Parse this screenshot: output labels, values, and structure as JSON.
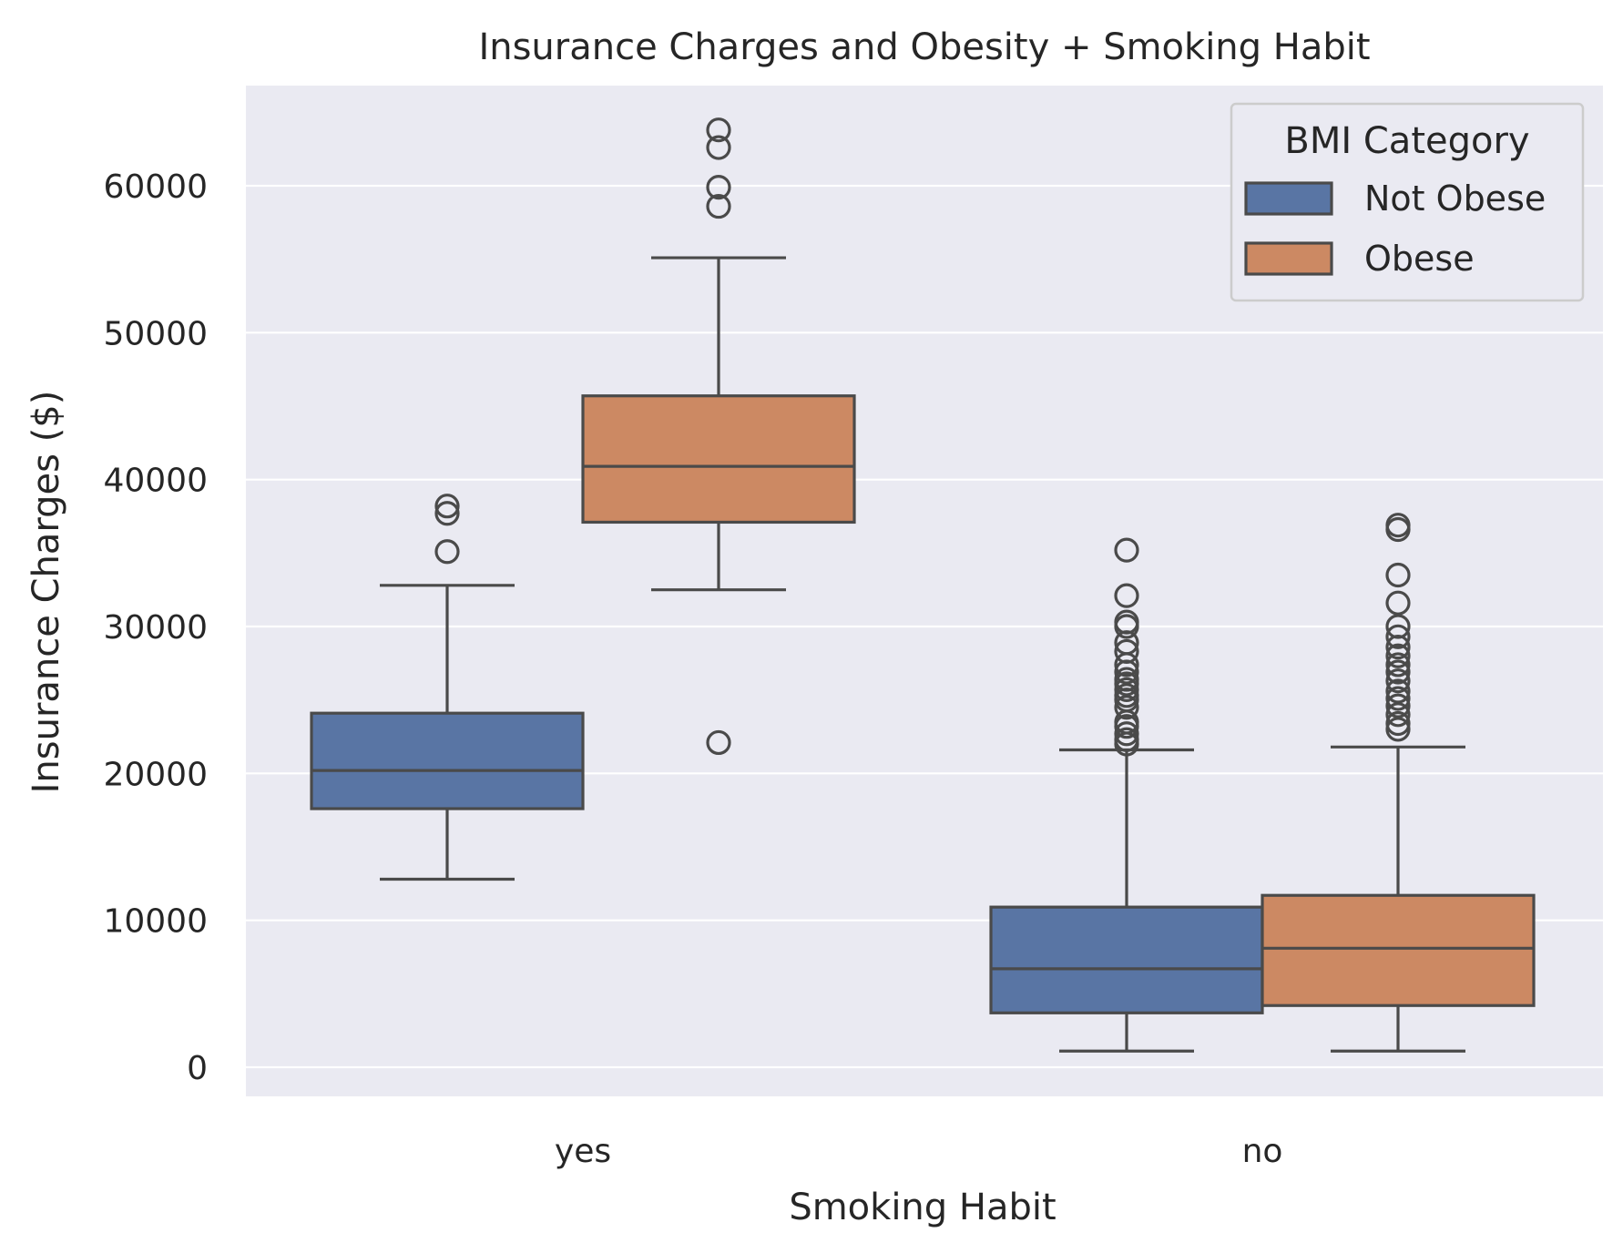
{
  "chart_data": {
    "type": "box",
    "title": "Insurance Charges and Obesity + Smoking Habit",
    "xlabel": "Smoking Habit",
    "ylabel": "Insurance Charges ($)",
    "categories": [
      "yes",
      "no"
    ],
    "ylim": [
      -2000,
      66000
    ],
    "yticks": [
      0,
      10000,
      20000,
      30000,
      40000,
      50000,
      60000
    ],
    "ytick_labels": [
      "0",
      "10000",
      "20000",
      "30000",
      "40000",
      "50000",
      "60000"
    ],
    "grid": true,
    "legend": {
      "title": "BMI Category",
      "placement": "top-right"
    },
    "series": [
      {
        "name": "Not Obese",
        "color": "#5975a4",
        "boxes": [
          {
            "category": "yes",
            "whisker_low": 12800,
            "q1": 17600,
            "median": 20200,
            "q3": 24100,
            "whisker_high": 32800,
            "outliers": [
              35100,
              37700,
              38200
            ]
          },
          {
            "category": "no",
            "whisker_low": 1100,
            "q1": 3700,
            "median": 6700,
            "q3": 10900,
            "whisker_high": 21600,
            "outliers": [
              22000,
              22300,
              22700,
              23200,
              23500,
              24500,
              25000,
              25300,
              25700,
              26100,
              26400,
              26900,
              27400,
              28300,
              28900,
              30000,
              30300,
              32100,
              35200
            ]
          }
        ]
      },
      {
        "name": "Obese",
        "color": "#cc8963",
        "boxes": [
          {
            "category": "yes",
            "whisker_low": 32500,
            "q1": 37100,
            "median": 40900,
            "q3": 45700,
            "whisker_high": 55100,
            "outliers": [
              22100,
              58600,
              59900,
              62600,
              63800
            ]
          },
          {
            "category": "no",
            "whisker_low": 1100,
            "q1": 4200,
            "median": 8100,
            "q3": 11700,
            "whisker_high": 21800,
            "outliers": [
              23000,
              23400,
              24000,
              24600,
              25100,
              25600,
              26300,
              26900,
              27400,
              28000,
              28600,
              29300,
              30000,
              31600,
              33500,
              36600,
              36900
            ]
          }
        ]
      }
    ]
  }
}
